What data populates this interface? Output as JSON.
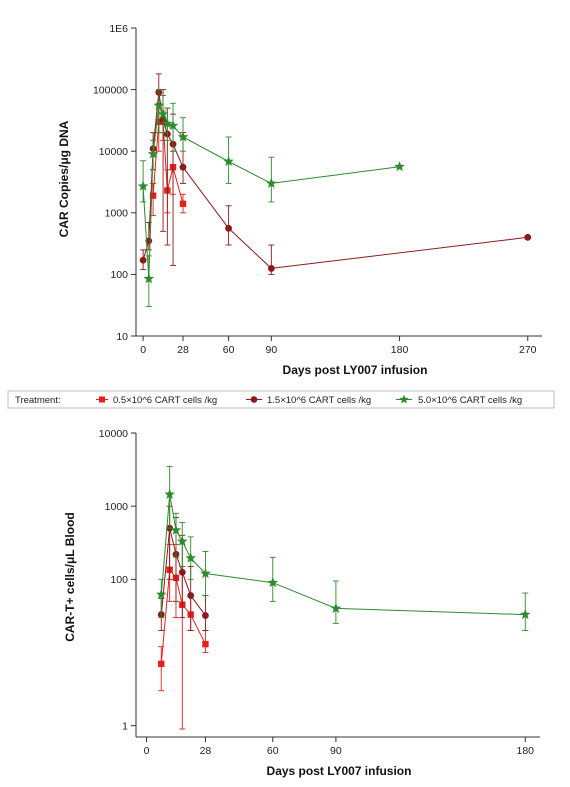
{
  "legend": {
    "title": "Treatment:",
    "entries": [
      {
        "label": "0.5×10^6 CART cells /kg",
        "color": "#e3201b",
        "marker": "square"
      },
      {
        "label": "1.5×10^6 CART cells /kg",
        "color": "#8b1a1a",
        "marker": "circle"
      },
      {
        "label": "5.0×10^6 CART cells /kg",
        "color": "#2e8b2e",
        "marker": "star"
      }
    ]
  },
  "chart_data": [
    {
      "type": "line",
      "xlabel": "Days post LY007 infusion",
      "ylabel": "CAR Copies/μg DNA",
      "y_scale": "log",
      "ylim": [
        10,
        1000000
      ],
      "yticks": [
        {
          "value": 10,
          "label": "10"
        },
        {
          "value": 100,
          "label": "100"
        },
        {
          "value": 1000,
          "label": "1000"
        },
        {
          "value": 10000,
          "label": "10000"
        },
        {
          "value": 100000,
          "label": "100000"
        },
        {
          "value": 1000000,
          "label": "1E6"
        }
      ],
      "xlim": [
        -5,
        280
      ],
      "xticks": [
        {
          "value": 0,
          "label": "0"
        },
        {
          "value": 28,
          "label": "28"
        },
        {
          "value": 60,
          "label": "60"
        },
        {
          "value": 90,
          "label": "90"
        },
        {
          "value": 180,
          "label": "180"
        },
        {
          "value": 270,
          "label": "270"
        }
      ],
      "grid": false,
      "series": [
        {
          "name": "0.5×10^6 CART cells /kg",
          "color": "#e3201b",
          "marker": "square",
          "points": [
            {
              "x": 7,
              "y": 1900,
              "lo": 900,
              "hi": 3000
            },
            {
              "x": 11,
              "y": 30000,
              "lo": 10000,
              "hi": 60000
            },
            {
              "x": 14,
              "y": 30000,
              "lo": 15000,
              "hi": 45000
            },
            {
              "x": 17,
              "y": 2300,
              "lo": 1000,
              "hi": 5000
            },
            {
              "x": 21,
              "y": 5500,
              "lo": 2000,
              "hi": 10000
            },
            {
              "x": 28,
              "y": 1400,
              "lo": 1000,
              "hi": 2000
            }
          ]
        },
        {
          "name": "1.5×10^6 CART cells /kg",
          "color": "#8b1a1a",
          "marker": "circle",
          "points": [
            {
              "x": 0,
              "y": 170,
              "lo": 120,
              "hi": 250
            },
            {
              "x": 4,
              "y": 350,
              "lo": 250,
              "hi": 700
            },
            {
              "x": 7,
              "y": 11000,
              "lo": 5000,
              "hi": 20000
            },
            {
              "x": 11,
              "y": 90000,
              "lo": 20000,
              "hi": 180000
            },
            {
              "x": 14,
              "y": 32000,
              "lo": 500,
              "hi": 100000
            },
            {
              "x": 17,
              "y": 19000,
              "lo": 300,
              "hi": 50000
            },
            {
              "x": 21,
              "y": 13000,
              "lo": 140,
              "hi": 40000
            },
            {
              "x": 28,
              "y": 5500,
              "lo": 3000,
              "hi": 20000
            },
            {
              "x": 60,
              "y": 560,
              "lo": 300,
              "hi": 1300
            },
            {
              "x": 90,
              "y": 125,
              "lo": 100,
              "hi": 300
            },
            {
              "x": 270,
              "y": 400
            }
          ]
        },
        {
          "name": "5.0×10^6 CART cells /kg",
          "color": "#2e8b2e",
          "marker": "star",
          "points": [
            {
              "x": 0,
              "y": 2700,
              "lo": 1500,
              "hi": 7000
            },
            {
              "x": 4,
              "y": 85,
              "lo": 30,
              "hi": 200
            },
            {
              "x": 7,
              "y": 9000,
              "lo": 5000,
              "hi": 15000
            },
            {
              "x": 11,
              "y": 55000,
              "lo": 20000,
              "hi": 100000
            },
            {
              "x": 14,
              "y": 40000,
              "lo": 20000,
              "hi": 80000
            },
            {
              "x": 17,
              "y": 28000,
              "lo": 15000,
              "hi": 50000
            },
            {
              "x": 21,
              "y": 26000,
              "lo": 10000,
              "hi": 60000
            },
            {
              "x": 28,
              "y": 17000,
              "lo": 10000,
              "hi": 35000
            },
            {
              "x": 60,
              "y": 6800,
              "lo": 3000,
              "hi": 17000
            },
            {
              "x": 90,
              "y": 3000,
              "lo": 1500,
              "hi": 8000
            },
            {
              "x": 180,
              "y": 5600
            }
          ]
        }
      ]
    },
    {
      "type": "line",
      "xlabel": "Days post LY007 infusion",
      "ylabel": "CAR-T+ cells/μL Blood",
      "y_scale": "log",
      "ylim": [
        0.7,
        10000
      ],
      "yticks": [
        {
          "value": 1,
          "label": "1"
        },
        {
          "value": 100,
          "label": "100"
        },
        {
          "value": 1000,
          "label": "1000"
        },
        {
          "value": 10000,
          "label": "10000"
        }
      ],
      "xlim": [
        -5,
        187
      ],
      "xticks": [
        {
          "value": 0,
          "label": "0"
        },
        {
          "value": 28,
          "label": "28"
        },
        {
          "value": 60,
          "label": "60"
        },
        {
          "value": 90,
          "label": "90"
        },
        {
          "value": 180,
          "label": "180"
        }
      ],
      "grid": false,
      "series": [
        {
          "name": "0.5×10^6 CART cells /kg",
          "color": "#e3201b",
          "marker": "square",
          "points": [
            {
              "x": 7,
              "y": 7,
              "lo": 3,
              "hi": 12
            },
            {
              "x": 11,
              "y": 135,
              "lo": 50,
              "hi": 300
            },
            {
              "x": 14,
              "y": 105,
              "lo": 30,
              "hi": 300
            },
            {
              "x": 17,
              "y": 45,
              "lo": 0.9,
              "hi": 150
            },
            {
              "x": 21,
              "y": 33,
              "lo": 20,
              "hi": 60
            },
            {
              "x": 28,
              "y": 13,
              "lo": 10,
              "hi": 20
            }
          ]
        },
        {
          "name": "1.5×10^6 CART cells /kg",
          "color": "#8b1a1a",
          "marker": "circle",
          "points": [
            {
              "x": 7,
              "y": 33,
              "lo": 20,
              "hi": 55
            },
            {
              "x": 11,
              "y": 500,
              "lo": 100,
              "hi": 1000
            },
            {
              "x": 14,
              "y": 220,
              "lo": 50,
              "hi": 700
            },
            {
              "x": 17,
              "y": 125,
              "lo": 30,
              "hi": 400
            },
            {
              "x": 21,
              "y": 60,
              "lo": 20,
              "hi": 150
            },
            {
              "x": 28,
              "y": 32,
              "lo": 20,
              "hi": 60
            }
          ]
        },
        {
          "name": "5.0×10^6 CART cells /kg",
          "color": "#2e8b2e",
          "marker": "star",
          "points": [
            {
              "x": 7,
              "y": 62,
              "lo": 30,
              "hi": 100
            },
            {
              "x": 11,
              "y": 1450,
              "lo": 500,
              "hi": 3500
            },
            {
              "x": 14,
              "y": 470,
              "lo": 200,
              "hi": 800
            },
            {
              "x": 17,
              "y": 330,
              "lo": 150,
              "hi": 600
            },
            {
              "x": 21,
              "y": 195,
              "lo": 100,
              "hi": 380
            },
            {
              "x": 28,
              "y": 120,
              "lo": 60,
              "hi": 240
            },
            {
              "x": 60,
              "y": 90,
              "lo": 50,
              "hi": 200
            },
            {
              "x": 90,
              "y": 40,
              "lo": 25,
              "hi": 95
            },
            {
              "x": 180,
              "y": 33,
              "lo": 20,
              "hi": 65
            }
          ]
        }
      ]
    }
  ]
}
